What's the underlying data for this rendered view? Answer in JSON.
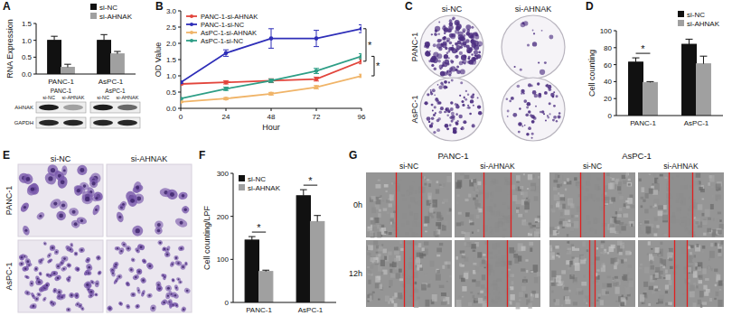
{
  "chart_data": [
    {
      "panel": "A",
      "type": "bar",
      "y_label": "RNA Expression",
      "categories": [
        "PANC-1",
        "AsPC-1"
      ],
      "series": [
        {
          "name": "si-NC",
          "color": "#111111",
          "values": [
            1.0,
            1.0
          ],
          "errors": [
            0.12,
            0.17
          ]
        },
        {
          "name": "si-AHNAK",
          "color": "#a0a0a0",
          "values": [
            0.2,
            0.6
          ],
          "errors": [
            0.09,
            0.07
          ]
        }
      ],
      "ylim": [
        0,
        1.5
      ],
      "yticks": [
        {
          "value": 0,
          "label": "0.0"
        },
        0.5,
        {
          "value": 1,
          "label": "1.0"
        },
        1.5
      ],
      "legend": "top-right",
      "grid": false
    },
    {
      "panel": "B",
      "type": "line",
      "x_label": "Hour",
      "y_label": "OD Value",
      "x": [
        0,
        24,
        48,
        72,
        96
      ],
      "xlim": [
        0,
        96
      ],
      "xticks": [
        0,
        24,
        48,
        72,
        96
      ],
      "ylim": [
        0,
        3
      ],
      "yticks": [
        {
          "value": 0,
          "label": "0.0"
        },
        0.5,
        {
          "value": 1,
          "label": "1.0"
        },
        1.5,
        {
          "value": 2,
          "label": "2.0"
        },
        2.5,
        {
          "value": 3,
          "label": "3.0"
        }
      ],
      "marker": "circle",
      "legend": "top-left",
      "grid": false,
      "series": [
        {
          "name": "PANC-1-si-AHNAK",
          "color": "#e2453c",
          "values": [
            0.75,
            0.8,
            0.85,
            0.9,
            1.45
          ],
          "errors": [
            0.03,
            0.05,
            0.06,
            0.06,
            0.08
          ]
        },
        {
          "name": "PANC-1-si-NC",
          "color": "#2e2eb8",
          "values": [
            0.8,
            1.7,
            2.15,
            2.15,
            2.45
          ],
          "errors": [
            0.03,
            0.1,
            0.3,
            0.25,
            0.12
          ]
        },
        {
          "name": "AsPC-1-si-AHNAK",
          "color": "#f0b468",
          "values": [
            0.2,
            0.3,
            0.45,
            0.65,
            1.0
          ],
          "errors": [
            0.02,
            0.03,
            0.04,
            0.05,
            0.05
          ]
        },
        {
          "name": "AsPC-1-si-NC",
          "color": "#2e9e86",
          "values": [
            0.3,
            0.6,
            0.85,
            1.15,
            1.6
          ],
          "errors": [
            0.02,
            0.05,
            0.05,
            0.08,
            0.08
          ]
        }
      ],
      "annotations": [
        {
          "text": "*",
          "series": [
            "PANC-1-si-NC",
            "PANC-1-si-AHNAK"
          ]
        },
        {
          "text": "*",
          "series": [
            "AsPC-1-si-NC",
            "AsPC-1-si-AHNAK"
          ]
        }
      ]
    },
    {
      "panel": "D",
      "type": "bar",
      "y_label": "Cell counting",
      "categories": [
        "PANC-1",
        "AsPC-1"
      ],
      "series": [
        {
          "name": "si-NC",
          "color": "#111111",
          "values": [
            63,
            84
          ],
          "errors": [
            5,
            6
          ]
        },
        {
          "name": "si-AHNAK",
          "color": "#a0a0a0",
          "values": [
            39,
            61
          ],
          "errors": [
            1,
            9
          ]
        }
      ],
      "ylim": [
        0,
        100
      ],
      "yticks": [
        0,
        20,
        40,
        60,
        80,
        100
      ],
      "legend": "top-right",
      "grid": false,
      "annotations": [
        {
          "text": "*",
          "category": "PANC-1"
        }
      ]
    },
    {
      "panel": "F",
      "type": "bar",
      "y_label": "Cell counting/LPF",
      "categories": [
        "PANC-1",
        "AsPC-1"
      ],
      "series": [
        {
          "name": "si-NC",
          "color": "#111111",
          "values": [
            145,
            248
          ],
          "errors": [
            8,
            14
          ]
        },
        {
          "name": "si-AHNAK",
          "color": "#a0a0a0",
          "values": [
            72,
            188
          ],
          "errors": [
            3,
            14
          ]
        }
      ],
      "ylim": [
        0,
        300
      ],
      "yticks": [
        0,
        100,
        200,
        300
      ],
      "legend": "top-left",
      "grid": false,
      "annotations": [
        {
          "text": "*",
          "category": "PANC-1"
        },
        {
          "text": "*",
          "category": "AsPC-1"
        }
      ]
    }
  ],
  "figures": [
    {
      "kind": "western-blot",
      "groups": [
        "PANC-1",
        "AsPC-1"
      ],
      "columns": [
        "si-NC",
        "si-AHNAK",
        "si-NC",
        "si-AHNAK"
      ],
      "rows": [
        "AHNAK",
        "GAPDH"
      ]
    },
    {
      "panel": "C",
      "kind": "colony",
      "columns": [
        "si-NC",
        "si-AHNAK"
      ],
      "rows": [
        "PANC-1",
        "AsPC-1"
      ]
    },
    {
      "panel": "E",
      "kind": "transwell",
      "columns": [
        "si-NC",
        "si-AHNAK"
      ],
      "rows": [
        "PANC-1",
        "AsPC-1"
      ]
    },
    {
      "panel": "G",
      "kind": "wound-healing",
      "groups": [
        "PANC-1",
        "AsPC-1"
      ],
      "columns": [
        "si-NC",
        "si-AHNAK"
      ],
      "rows": [
        "0h",
        "12h"
      ]
    }
  ]
}
